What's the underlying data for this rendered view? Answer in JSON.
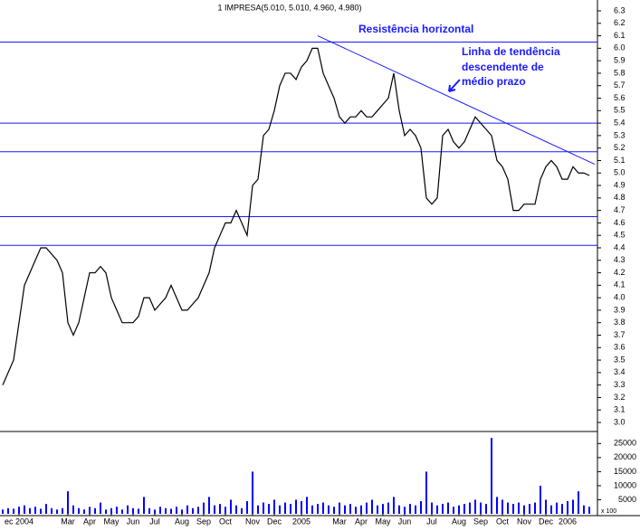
{
  "chart_data": {
    "type": "stock",
    "title": "1 IMPRESA(5.010, 5.010, 4.960, 4.980)",
    "annotations": [
      "Resistência horizontal",
      "Linha de tendência",
      "descendente de",
      "médio prazo"
    ],
    "volume_unit_label": "x 100",
    "categories": [
      null,
      null,
      null,
      "ec 2004",
      null,
      null,
      null,
      null,
      null,
      null,
      null,
      null,
      "Mar",
      null,
      null,
      null,
      "Apr",
      null,
      null,
      null,
      "May",
      null,
      null,
      null,
      "Jun",
      null,
      null,
      null,
      "Jul",
      null,
      null,
      null,
      null,
      "Aug",
      null,
      null,
      null,
      "Sep",
      null,
      null,
      null,
      "Oct",
      null,
      null,
      null,
      null,
      "Nov",
      null,
      null,
      null,
      "Dec",
      null,
      null,
      null,
      null,
      "2005",
      null,
      null,
      null,
      null,
      null,
      null,
      "Mar",
      null,
      null,
      null,
      "Apr",
      null,
      null,
      null,
      "May",
      null,
      null,
      null,
      "Jun",
      null,
      null,
      null,
      null,
      "Jul",
      null,
      null,
      null,
      null,
      "Aug",
      null,
      null,
      null,
      "Sep",
      null,
      null,
      null,
      "Oct",
      null,
      null,
      null,
      "Nov",
      null,
      null,
      null,
      "Dec",
      null,
      null,
      null,
      "2006",
      null,
      null,
      null,
      null
    ],
    "series": [
      {
        "name": "IMPRESA",
        "color": "#000000",
        "values": [
          3.3,
          3.4,
          3.5,
          3.8,
          4.1,
          4.2,
          4.3,
          4.4,
          4.4,
          4.35,
          4.3,
          4.2,
          3.8,
          3.7,
          3.8,
          4.0,
          4.2,
          4.2,
          4.25,
          4.2,
          4.0,
          3.9,
          3.8,
          3.8,
          3.8,
          3.85,
          4.0,
          4.0,
          3.9,
          3.95,
          4.0,
          4.1,
          4.0,
          3.9,
          3.9,
          3.95,
          4.0,
          4.1,
          4.2,
          4.4,
          4.5,
          4.6,
          4.6,
          4.7,
          4.6,
          4.5,
          4.9,
          4.95,
          5.3,
          5.35,
          5.5,
          5.7,
          5.8,
          5.8,
          5.75,
          5.85,
          5.9,
          6.0,
          6.0,
          5.8,
          5.7,
          5.6,
          5.45,
          5.4,
          5.45,
          5.45,
          5.5,
          5.45,
          5.45,
          5.5,
          5.55,
          5.6,
          5.8,
          5.5,
          5.3,
          5.35,
          5.3,
          5.2,
          4.8,
          4.75,
          4.8,
          5.3,
          5.35,
          5.25,
          5.2,
          5.25,
          5.35,
          5.45,
          5.4,
          5.35,
          5.3,
          5.1,
          5.05,
          4.95,
          4.7,
          4.7,
          4.75,
          4.75,
          4.75,
          4.95,
          5.05,
          5.1,
          5.05,
          4.95,
          4.95,
          5.05,
          5.0,
          5.0,
          4.98
        ]
      },
      {
        "name": "Volume",
        "color": "#0000ff",
        "axis": "y2",
        "values": [
          1500,
          2000,
          1800,
          2500,
          3000,
          2000,
          2500,
          1800,
          3500,
          2000,
          1500,
          2000,
          8000,
          3000,
          2000,
          1500,
          2500,
          2000,
          4000,
          1500,
          2000,
          2500,
          1500,
          3000,
          2000,
          1800,
          6000,
          2000,
          1500,
          2500,
          2000,
          1800,
          2500,
          1500,
          3000,
          2000,
          2500,
          4000,
          6000,
          3000,
          3500,
          2500,
          5000,
          3000,
          2000,
          4500,
          15000,
          3000,
          4000,
          3500,
          5000,
          3000,
          4000,
          3500,
          5000,
          4500,
          6000,
          3000,
          3500,
          4000,
          3000,
          2500,
          4000,
          3000,
          3500,
          2500,
          3000,
          4000,
          5000,
          3000,
          3500,
          4000,
          6000,
          3000,
          2500,
          3500,
          3000,
          4500,
          15000,
          4000,
          3000,
          3500,
          4000,
          2500,
          3000,
          3500,
          4000,
          5000,
          4000,
          3500,
          27000,
          6000,
          5000,
          4000,
          3500,
          4000,
          3000,
          3500,
          4000,
          10000,
          5000,
          3000,
          4000,
          3500,
          4500,
          5000,
          8000,
          3000,
          2500
        ]
      }
    ],
    "hlines": [
      6.05,
      5.4,
      5.17,
      4.65,
      4.42
    ],
    "hline_color": "#1a1aff",
    "trendline": {
      "x": [
        58,
        109
      ],
      "y": [
        6.1,
        5.07
      ]
    },
    "ylim": [
      3.0,
      6.3
    ],
    "yticks": [
      {
        "value": 3.0,
        "label": "3.0"
      },
      3.1,
      3.2,
      3.3,
      3.4,
      3.5,
      3.6,
      3.7,
      3.8,
      3.9,
      {
        "value": 4.0,
        "label": "4.0"
      },
      4.1,
      4.2,
      4.3,
      4.4,
      4.5,
      4.6,
      4.7,
      4.8,
      4.9,
      {
        "value": 5.0,
        "label": "5.0"
      },
      5.1,
      5.2,
      5.3,
      5.4,
      5.5,
      5.6,
      5.7,
      5.8,
      5.9,
      {
        "value": 6.0,
        "label": "6.0"
      },
      6.1,
      6.2,
      6.3
    ],
    "y2lim": [
      0,
      28000
    ],
    "y2ticks": [
      5000,
      10000,
      15000,
      20000,
      25000
    ]
  }
}
